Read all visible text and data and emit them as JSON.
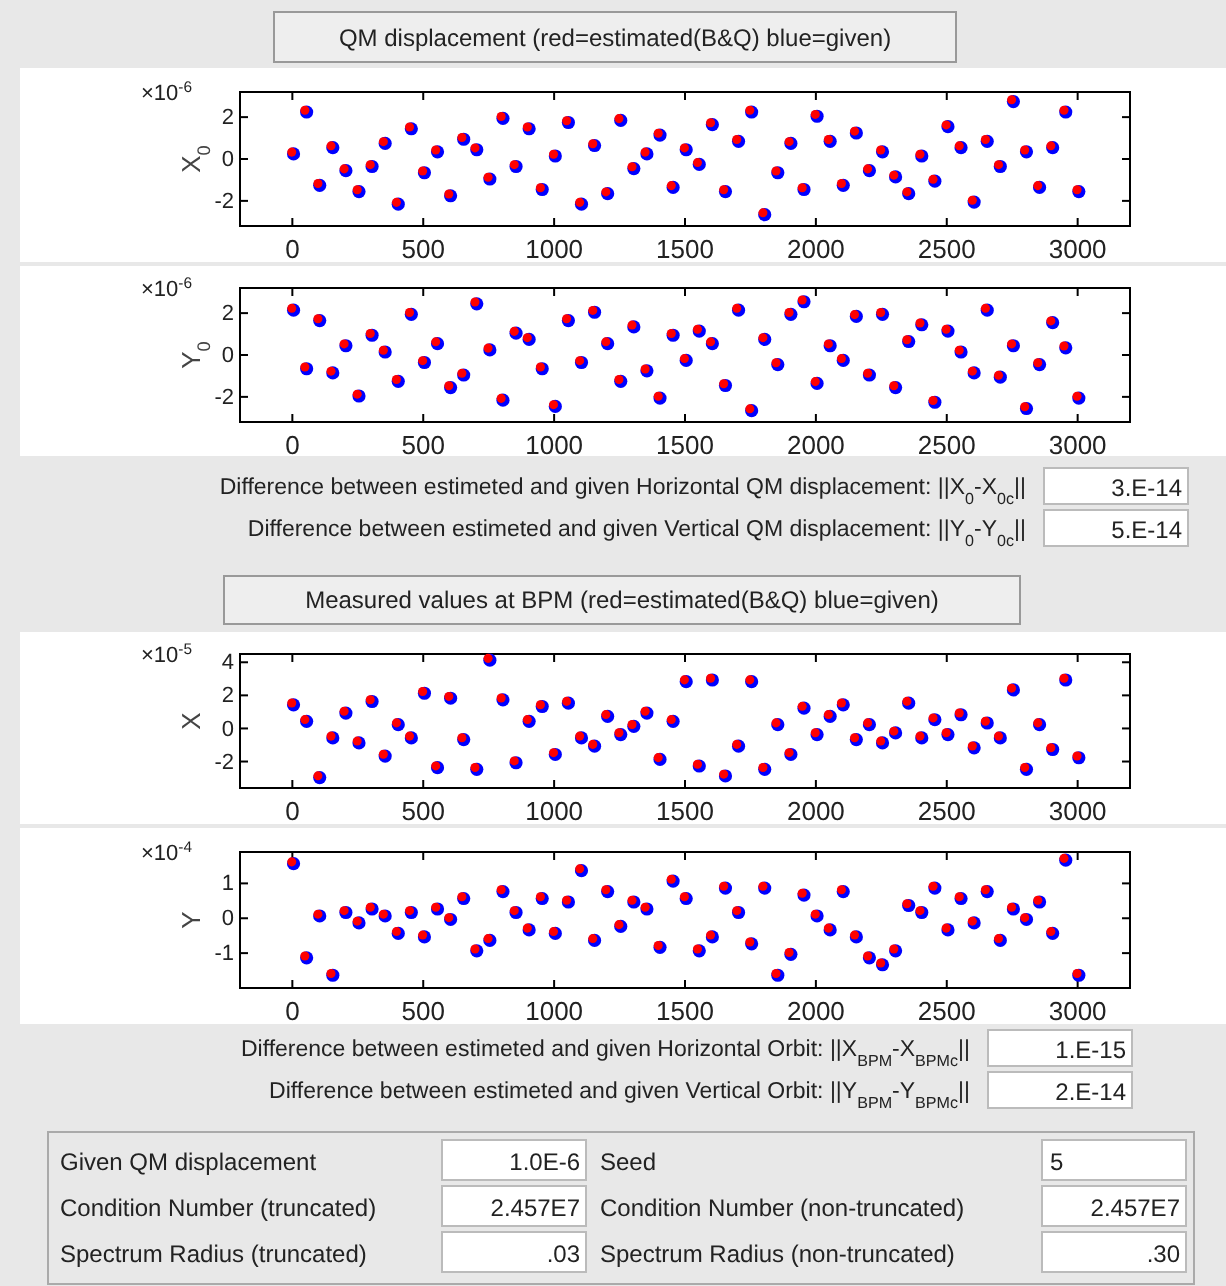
{
  "chart_data": [
    {
      "type": "scatter",
      "title": "QM displacement (red=estimated(B&Q) blue=given)",
      "ylabel": "X$_{0}$",
      "annotations": [
        "×10$^{-6}$"
      ],
      "xlim": [
        -200,
        3200
      ],
      "xticks": [
        0,
        500,
        1000,
        1500,
        2000,
        2500,
        3000
      ],
      "ylim": [
        -3.2,
        3.2
      ],
      "yticks": [
        -2,
        0,
        2
      ],
      "marker": "circle",
      "x": [
        0,
        50,
        100,
        150,
        200,
        250,
        300,
        350,
        400,
        450,
        500,
        550,
        600,
        650,
        700,
        750,
        800,
        850,
        900,
        950,
        1000,
        1050,
        1100,
        1150,
        1200,
        1250,
        1300,
        1350,
        1400,
        1450,
        1500,
        1550,
        1600,
        1650,
        1700,
        1750,
        1800,
        1850,
        1900,
        1950,
        2000,
        2050,
        2100,
        2150,
        2200,
        2250,
        2300,
        2350,
        2400,
        2450,
        2500,
        2550,
        2600,
        2650,
        2700,
        2750,
        2800,
        2850,
        2900,
        2950,
        3000
      ],
      "series": [
        {
          "color": "#0000ff",
          "values": [
            0.3,
            2.3,
            -1.2,
            0.6,
            -0.5,
            -1.5,
            -0.3,
            0.8,
            -2.1,
            1.5,
            -0.6,
            0.4,
            -1.7,
            1.0,
            0.5,
            -0.9,
            2.0,
            -0.3,
            1.5,
            -1.4,
            0.2,
            1.8,
            -2.1,
            0.7,
            -1.6,
            1.9,
            -0.4,
            0.3,
            1.2,
            -1.3,
            0.5,
            -0.2,
            1.7,
            -1.5,
            0.9,
            2.3,
            -2.6,
            -0.6,
            0.8,
            -1.4,
            2.1,
            0.9,
            -1.2,
            1.3,
            -0.5,
            0.4,
            -0.8,
            -1.6,
            0.2,
            -1.0,
            1.6,
            0.6,
            -2.0,
            0.9,
            -0.3,
            2.8,
            0.4,
            -1.3,
            0.6,
            2.3,
            -1.5
          ]
        },
        {
          "color": "#ff0000",
          "values": [
            0.3,
            2.3,
            -1.2,
            0.6,
            -0.5,
            -1.5,
            -0.3,
            0.8,
            -2.1,
            1.5,
            -0.6,
            0.4,
            -1.7,
            1.0,
            0.5,
            -0.9,
            2.0,
            -0.3,
            1.5,
            -1.4,
            0.2,
            1.8,
            -2.1,
            0.7,
            -1.6,
            1.9,
            -0.4,
            0.3,
            1.2,
            -1.3,
            0.5,
            -0.2,
            1.7,
            -1.5,
            0.9,
            2.3,
            -2.6,
            -0.6,
            0.8,
            -1.4,
            2.1,
            0.9,
            -1.2,
            1.3,
            -0.5,
            0.4,
            -0.8,
            -1.6,
            0.2,
            -1.0,
            1.6,
            0.6,
            -2.0,
            0.9,
            -0.3,
            2.8,
            0.4,
            -1.3,
            0.6,
            2.3,
            -1.5
          ]
        }
      ]
    },
    {
      "type": "scatter",
      "ylabel": "Y$_{0}$",
      "annotations": [
        "×10$^{-6}$",
        "Difference between estimeted and given Horizontal QM displacement: ||X$_{0}$-X$_{0c}$||",
        "3.E-14",
        "Difference between estimeted and given Vertical QM displacement: ||Y$_{0}$-Y$_{0c}$||",
        "5.E-14"
      ],
      "xlim": [
        -200,
        3200
      ],
      "xticks": [
        0,
        500,
        1000,
        1500,
        2000,
        2500,
        3000
      ],
      "ylim": [
        -3.2,
        3.2
      ],
      "yticks": [
        -2,
        0,
        2
      ],
      "marker": "circle",
      "x": [
        0,
        50,
        100,
        150,
        200,
        250,
        300,
        350,
        400,
        450,
        500,
        550,
        600,
        650,
        700,
        750,
        800,
        850,
        900,
        950,
        1000,
        1050,
        1100,
        1150,
        1200,
        1250,
        1300,
        1350,
        1400,
        1450,
        1500,
        1550,
        1600,
        1650,
        1700,
        1750,
        1800,
        1850,
        1900,
        1950,
        2000,
        2050,
        2100,
        2150,
        2200,
        2250,
        2300,
        2350,
        2400,
        2450,
        2500,
        2550,
        2600,
        2650,
        2700,
        2750,
        2800,
        2850,
        2900,
        2950,
        3000
      ],
      "series": [
        {
          "color": "#0000ff",
          "values": [
            2.2,
            -0.6,
            1.7,
            -0.8,
            0.5,
            -1.9,
            1.0,
            0.2,
            -1.2,
            2.0,
            -0.3,
            0.6,
            -1.5,
            -0.9,
            2.5,
            0.3,
            -2.1,
            1.1,
            0.8,
            -0.6,
            -2.4,
            1.7,
            -0.3,
            2.1,
            0.6,
            -1.2,
            1.4,
            -0.7,
            -2.0,
            1.0,
            -0.2,
            1.2,
            0.6,
            -1.4,
            2.2,
            -2.6,
            0.8,
            -0.4,
            2.0,
            2.6,
            -1.3,
            0.5,
            -0.2,
            1.9,
            -0.9,
            2.0,
            -1.5,
            0.7,
            1.5,
            -2.2,
            1.2,
            0.2,
            -0.8,
            2.2,
            -1.0,
            0.5,
            -2.5,
            -0.4,
            1.6,
            0.4,
            -2.0
          ]
        },
        {
          "color": "#ff0000",
          "values": [
            2.2,
            -0.6,
            1.7,
            -0.8,
            0.5,
            -1.9,
            1.0,
            0.2,
            -1.2,
            2.0,
            -0.3,
            0.6,
            -1.5,
            -0.9,
            2.5,
            0.3,
            -2.1,
            1.1,
            0.8,
            -0.6,
            -2.4,
            1.7,
            -0.3,
            2.1,
            0.6,
            -1.2,
            1.4,
            -0.7,
            -2.0,
            1.0,
            -0.2,
            1.2,
            0.6,
            -1.4,
            2.2,
            -2.6,
            0.8,
            -0.4,
            2.0,
            2.6,
            -1.3,
            0.5,
            -0.2,
            1.9,
            -0.9,
            2.0,
            -1.5,
            0.7,
            1.5,
            -2.2,
            1.2,
            0.2,
            -0.8,
            2.2,
            -1.0,
            0.5,
            -2.5,
            -0.4,
            1.6,
            0.4,
            -2.0
          ]
        }
      ]
    },
    {
      "type": "scatter",
      "title": "Measured values at BPM (red=estimated(B&Q) blue=given)",
      "ylabel": "X",
      "annotations": [
        "×10$^{-5}$"
      ],
      "xlim": [
        -200,
        3200
      ],
      "xticks": [
        0,
        500,
        1000,
        1500,
        2000,
        2500,
        3000
      ],
      "ylim": [
        -3.6,
        4.5
      ],
      "yticks": [
        -2,
        0,
        2,
        4
      ],
      "marker": "circle",
      "x": [
        0,
        50,
        100,
        150,
        200,
        250,
        300,
        350,
        400,
        450,
        500,
        550,
        600,
        650,
        700,
        750,
        800,
        850,
        900,
        950,
        1000,
        1050,
        1100,
        1150,
        1200,
        1250,
        1300,
        1350,
        1400,
        1450,
        1500,
        1550,
        1600,
        1650,
        1700,
        1750,
        1800,
        1850,
        1900,
        1950,
        2000,
        2050,
        2100,
        2150,
        2200,
        2250,
        2300,
        2350,
        2400,
        2450,
        2500,
        2550,
        2600,
        2650,
        2700,
        2750,
        2800,
        2850,
        2900,
        2950,
        3000
      ],
      "series": [
        {
          "color": "#0000ff",
          "values": [
            1.5,
            0.5,
            -2.9,
            -0.5,
            1.0,
            -0.8,
            1.7,
            -1.6,
            0.3,
            -0.5,
            2.2,
            -2.3,
            1.9,
            -0.6,
            -2.4,
            4.2,
            1.8,
            -2.0,
            0.5,
            1.4,
            -1.5,
            1.6,
            -0.5,
            -1.0,
            0.8,
            -0.3,
            0.2,
            1.0,
            -1.8,
            0.5,
            2.9,
            -2.2,
            3.0,
            -2.8,
            -1.0,
            2.9,
            -2.4,
            0.3,
            -1.5,
            1.3,
            -0.3,
            0.8,
            1.5,
            -0.6,
            0.3,
            -0.8,
            -0.2,
            1.6,
            -0.5,
            0.6,
            -0.3,
            0.9,
            -1.1,
            0.4,
            -0.5,
            2.4,
            -2.4,
            0.3,
            -1.2,
            3.0,
            -1.7
          ]
        },
        {
          "color": "#ff0000",
          "values": [
            1.5,
            0.5,
            -2.9,
            -0.5,
            1.0,
            -0.8,
            1.7,
            -1.6,
            0.3,
            -0.5,
            2.2,
            -2.3,
            1.9,
            -0.6,
            -2.4,
            4.2,
            1.8,
            -2.0,
            0.5,
            1.4,
            -1.5,
            1.6,
            -0.5,
            -1.0,
            0.8,
            -0.3,
            0.2,
            1.0,
            -1.8,
            0.5,
            2.9,
            -2.2,
            3.0,
            -2.8,
            -1.0,
            2.9,
            -2.4,
            0.3,
            -1.5,
            1.3,
            -0.3,
            0.8,
            1.5,
            -0.6,
            0.3,
            -0.8,
            -0.2,
            1.6,
            -0.5,
            0.6,
            -0.3,
            0.9,
            -1.1,
            0.4,
            -0.5,
            2.4,
            -2.4,
            0.3,
            -1.2,
            3.0,
            -1.7
          ]
        }
      ]
    },
    {
      "type": "scatter",
      "ylabel": "Y",
      "annotations": [
        "×10$^{-4}$",
        "Difference between estimeted and given Horizontal Orbit: ||X$_{BPM}$-X$_{BPMc}$||",
        "1.E-15",
        "Difference between estimeted and given Vertical Orbit: ||Y$_{BPM}$-Y$_{BPMc}$||",
        "2.E-14"
      ],
      "xlim": [
        -200,
        3200
      ],
      "xticks": [
        0,
        500,
        1000,
        1500,
        2000,
        2500,
        3000
      ],
      "ylim": [
        -2,
        1.9
      ],
      "yticks": [
        -1,
        0,
        1
      ],
      "marker": "circle",
      "x": [
        0,
        50,
        100,
        150,
        200,
        250,
        300,
        350,
        400,
        450,
        500,
        550,
        600,
        650,
        700,
        750,
        800,
        850,
        900,
        950,
        1000,
        1050,
        1100,
        1150,
        1200,
        1250,
        1300,
        1350,
        1400,
        1450,
        1500,
        1550,
        1600,
        1650,
        1700,
        1750,
        1800,
        1850,
        1900,
        1950,
        2000,
        2050,
        2100,
        2150,
        2200,
        2250,
        2300,
        2350,
        2400,
        2450,
        2500,
        2550,
        2600,
        2650,
        2700,
        2750,
        2800,
        2850,
        2900,
        2950,
        3000
      ],
      "series": [
        {
          "color": "#0000ff",
          "values": [
            1.6,
            -1.1,
            0.1,
            -1.6,
            0.2,
            -0.1,
            0.3,
            0.1,
            -0.4,
            0.2,
            -0.5,
            0.3,
            0.0,
            0.6,
            -0.9,
            -0.6,
            0.8,
            0.2,
            -0.3,
            0.6,
            -0.4,
            0.5,
            1.4,
            -0.6,
            0.8,
            -0.2,
            0.5,
            0.3,
            -0.8,
            1.1,
            0.6,
            -0.9,
            -0.5,
            0.9,
            0.2,
            -0.7,
            0.9,
            -1.6,
            -1.0,
            0.7,
            0.1,
            -0.3,
            0.8,
            -0.5,
            -1.1,
            -1.3,
            -0.9,
            0.4,
            0.2,
            0.9,
            -0.3,
            0.6,
            -0.1,
            0.8,
            -0.6,
            0.3,
            0.0,
            0.5,
            -0.4,
            1.7,
            -1.6
          ]
        },
        {
          "color": "#ff0000",
          "values": [
            1.6,
            -1.1,
            0.1,
            -1.6,
            0.2,
            -0.1,
            0.3,
            0.1,
            -0.4,
            0.2,
            -0.5,
            0.3,
            0.0,
            0.6,
            -0.9,
            -0.6,
            0.8,
            0.2,
            -0.3,
            0.6,
            -0.4,
            0.5,
            1.4,
            -0.6,
            0.8,
            -0.2,
            0.5,
            0.3,
            -0.8,
            1.1,
            0.6,
            -0.9,
            -0.5,
            0.9,
            0.2,
            -0.7,
            0.9,
            -1.6,
            -1.0,
            0.7,
            0.1,
            -0.3,
            0.8,
            -0.5,
            -1.1,
            -1.3,
            -0.9,
            0.4,
            0.2,
            0.9,
            -0.3,
            0.6,
            -0.1,
            0.8,
            -0.6,
            0.3,
            0.0,
            0.5,
            -0.4,
            1.7,
            -1.6
          ]
        }
      ]
    },
    {
      "type": "other",
      "annotations": [
        "Given QM displacement",
        "1.0E-6",
        "Seed",
        "5",
        "Condition Number (truncated)",
        "2.457E7",
        "Condition Number (non-truncated)",
        "2.457E7",
        "Spectrum Radius (truncated)",
        ".03",
        "Spectrum Radius (non-truncated)",
        ".30"
      ]
    }
  ]
}
